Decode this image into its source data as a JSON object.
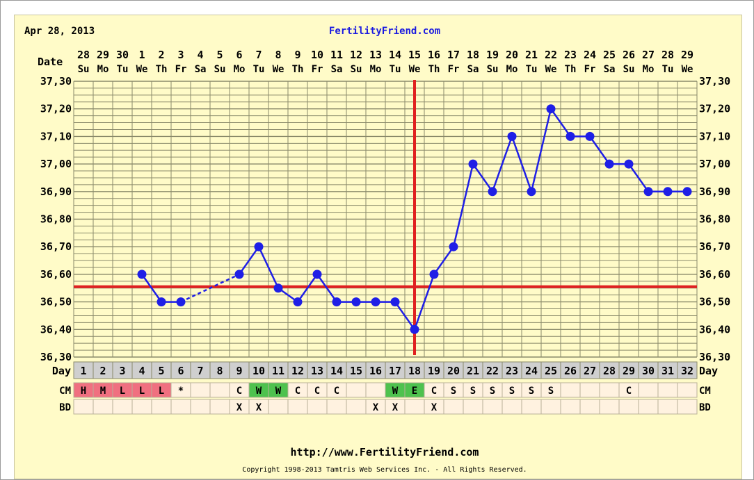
{
  "header": {
    "date": "Apr 28, 2013",
    "site": "FertilityFriend.com"
  },
  "footer": {
    "url": "http://www.FertilityFriend.com",
    "copyright": "Copyright 1998-2013 Tamtris Web Services Inc. - All Rights Reserved."
  },
  "row_labels": {
    "date": "Date",
    "day": "Day",
    "cm": "CM",
    "bd": "BD"
  },
  "colors": {
    "line": "#1f1fe6",
    "coverline": "#e02020",
    "grid": "#8a8a6a",
    "background": "#fffbc8",
    "cm_period": "#f07080",
    "cm_fertile": "#4ec24e",
    "cm_default": "#fff2e0",
    "day_row": "#cfcfcf"
  },
  "chart_data": {
    "type": "line",
    "title": "",
    "xlabel": "Day",
    "ylabel": "",
    "ylim": [
      36.3,
      37.3
    ],
    "y_ticks": [
      "37,30",
      "37,20",
      "37,10",
      "37,00",
      "36,90",
      "36,80",
      "36,70",
      "36,60",
      "36,50",
      "36,40",
      "36,30"
    ],
    "dates": [
      "28",
      "29",
      "30",
      "1",
      "2",
      "3",
      "4",
      "5",
      "6",
      "7",
      "8",
      "9",
      "10",
      "11",
      "12",
      "13",
      "14",
      "15",
      "16",
      "17",
      "18",
      "19",
      "20",
      "21",
      "22",
      "23",
      "24",
      "25",
      "26",
      "27",
      "28",
      "29"
    ],
    "weekdays": [
      "Su",
      "Mo",
      "Tu",
      "We",
      "Th",
      "Fr",
      "Sa",
      "Su",
      "Mo",
      "Tu",
      "We",
      "Th",
      "Fr",
      "Sa",
      "Su",
      "Mo",
      "Tu",
      "We",
      "Th",
      "Fr",
      "Sa",
      "Su",
      "Mo",
      "Tu",
      "We",
      "Th",
      "Fr",
      "Sa",
      "Su",
      "Mo",
      "Tu",
      "We"
    ],
    "days": [
      "1",
      "2",
      "3",
      "4",
      "5",
      "6",
      "7",
      "8",
      "9",
      "10",
      "11",
      "12",
      "13",
      "14",
      "15",
      "16",
      "17",
      "18",
      "19",
      "20",
      "21",
      "22",
      "23",
      "24",
      "25",
      "26",
      "27",
      "28",
      "29",
      "30",
      "31",
      "32"
    ],
    "temperatures": [
      null,
      null,
      null,
      36.6,
      36.5,
      36.5,
      null,
      null,
      36.6,
      36.7,
      36.55,
      36.5,
      36.6,
      36.5,
      36.5,
      36.5,
      36.5,
      36.4,
      36.6,
      36.7,
      37.0,
      36.9,
      37.1,
      36.9,
      37.2,
      37.1,
      37.1,
      37.0,
      37.0,
      36.9,
      36.9,
      36.9
    ],
    "coverline": 36.555,
    "ovulation_day": 18,
    "cm": [
      "H",
      "M",
      "L",
      "L",
      "L",
      "*",
      "",
      "",
      "C",
      "W",
      "W",
      "C",
      "C",
      "C",
      "",
      "",
      "W",
      "E",
      "C",
      "S",
      "S",
      "S",
      "S",
      "S",
      "S",
      "",
      "",
      "",
      "C",
      "",
      "",
      ""
    ],
    "cm_colors": [
      "period",
      "period",
      "period",
      "period",
      "period",
      "",
      "",
      "",
      "",
      "fertile",
      "fertile",
      "",
      "",
      "",
      "",
      "",
      "fertile",
      "fertile",
      "",
      "",
      "",
      "",
      "",
      "",
      "",
      "",
      "",
      "",
      "",
      "",
      "",
      ""
    ],
    "bd": [
      "",
      "",
      "",
      "",
      "",
      "",
      "",
      "",
      "X",
      "X",
      "",
      "",
      "",
      "",
      "",
      "X",
      "X",
      "",
      "X",
      "",
      "",
      "",
      "",
      "",
      "",
      "",
      "",
      "",
      "",
      "",
      "",
      ""
    ]
  }
}
